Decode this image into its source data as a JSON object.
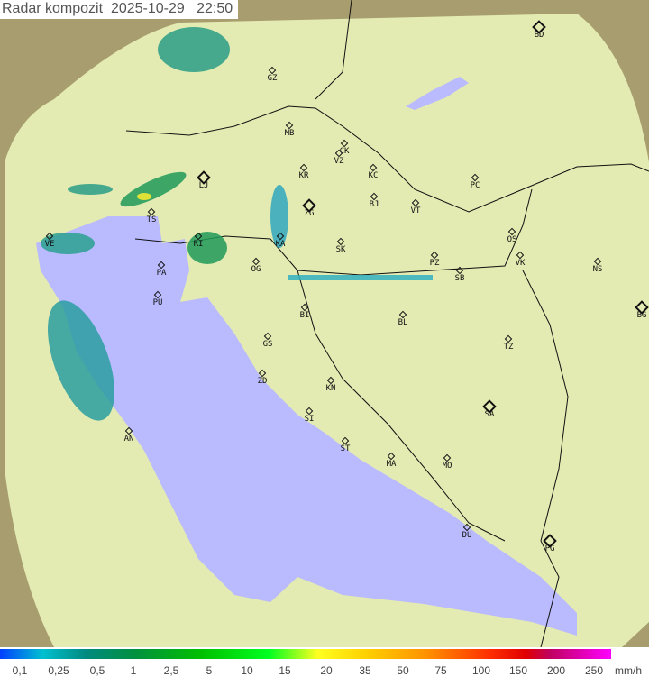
{
  "title": "Radar kompozit  2025-10-29   22:50",
  "colors": {
    "sea": "#babaff",
    "land": "#e3ebb2",
    "outside": "#a79d6e",
    "border": "#111111"
  },
  "cities": {
    "BD": "BD",
    "GZ": "GZ",
    "MB": "MB",
    "CK": "CK",
    "VZ": "VZ",
    "KR": "KR",
    "KC": "KC",
    "LJ": "LJ",
    "PC": "PC",
    "ZG": "ZG",
    "BJ": "BJ",
    "VT": "VT",
    "TS": "TS",
    "VE": "VE",
    "OS": "OS",
    "KA": "KA",
    "SK": "SK",
    "RI": "RI",
    "PZ": "PZ",
    "SB": "SB",
    "VK": "VK",
    "NS": "NS",
    "PA": "PA",
    "OG": "OG",
    "PU": "PU",
    "BI": "BI",
    "BG": "BG",
    "BL": "BL",
    "GS": "GS",
    "TZ": "TZ",
    "ZD": "ZD",
    "KN": "KN",
    "SA": "SA",
    "SI": "SI",
    "AN": "AN",
    "ST": "ST",
    "MA": "MA",
    "MO": "MO",
    "DU": "DU",
    "PG": "PG"
  },
  "legend": {
    "ticks": [
      "0,1",
      "0,25",
      "0,5",
      "1",
      "2,5",
      "5",
      "10",
      "15",
      "20",
      "35",
      "50",
      "75",
      "100",
      "150",
      "200",
      "250"
    ],
    "unit": "mm/h"
  }
}
